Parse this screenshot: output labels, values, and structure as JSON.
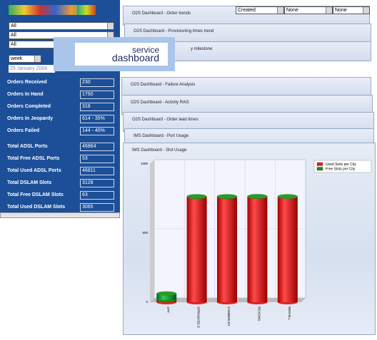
{
  "sidebar": {
    "selects": [
      "All",
      "All",
      "All"
    ],
    "period": "week",
    "date": "25 January 2004",
    "metrics": [
      {
        "label": "Orders Received",
        "value": "230"
      },
      {
        "label": "Orders In Hand",
        "value": "1750"
      },
      {
        "label": "Orders Completed",
        "value": "318"
      },
      {
        "label": "Orders In Jeopardy",
        "value": "614 - 35%"
      },
      {
        "label": "Orders Failed",
        "value": "144 - 45%"
      },
      {
        "label": "Total ADSL Ports",
        "value": "46864"
      },
      {
        "label": "Total Free ADSL Ports",
        "value": "53"
      },
      {
        "label": "Total Used ADSL Ports",
        "value": "46811"
      },
      {
        "label": "Total DSLAM Slots",
        "value": "3128"
      },
      {
        "label": "Total Free DSLAM Slots",
        "value": "63"
      },
      {
        "label": "Total Used DSLAM Slots",
        "value": "3065"
      }
    ]
  },
  "logo": {
    "line1": "service",
    "line2": "dashboard"
  },
  "filters": [
    "Created",
    "None",
    "None"
  ],
  "panels": [
    "O2S Dashboard - Order trends",
    "O2S Dashboard - Provisioning times trend",
    "y milestone",
    "O2S Dashboard - Failure Analysis",
    "O2S Dashboard - Activity RAG",
    "O2S Dashboard - Order lead times",
    "IMS Dashboard - Port Usage",
    "IMS Dashboard - Slot Usage"
  ],
  "chart_data": {
    "type": "bar",
    "stacked": true,
    "categories": [
      "APT",
      "SPRINGFIELD",
      "CAMBERLEY",
      "READING",
      "REDHILL"
    ],
    "series": [
      {
        "name": "Used Slots per City",
        "color": "#e02020",
        "values": [
          15,
          762,
          762,
          763,
          763
        ]
      },
      {
        "name": "Free Slots per City",
        "color": "#1a8a1a",
        "values": [
          48,
          4,
          4,
          4,
          3
        ]
      }
    ],
    "ylim": [
      0,
      1000
    ],
    "yticks": [
      0,
      500,
      1000
    ]
  }
}
